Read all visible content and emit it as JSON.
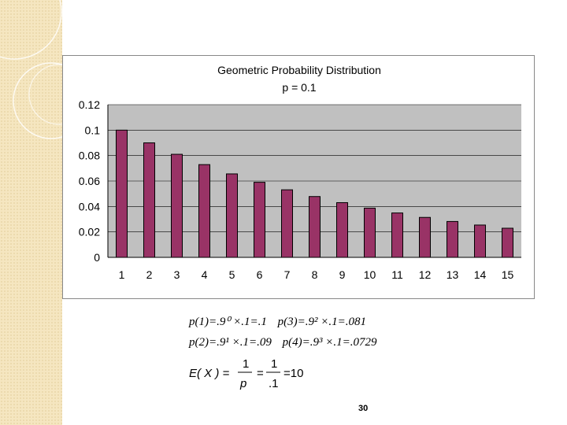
{
  "slide": {
    "page_number": "30",
    "formulas": {
      "p1": "p(1)=.9⁰ ×.1=.1",
      "p3": "p(3)=.9² ×.1=.081",
      "p2": "p(2)=.9¹ ×.1=.09",
      "p4": "p(4)=.9³ ×.1=.0729",
      "expectation": {
        "lhs": "E( X ) =",
        "frac1_num": "1",
        "frac1_den": "p",
        "eq1": "=",
        "frac2_num": "1",
        "frac2_den": ".1",
        "eq2": "=10"
      }
    }
  },
  "chart_data": {
    "type": "bar",
    "title": "Geometric Probability Distribution",
    "subtitle": "p = 0.1",
    "categories": [
      "1",
      "2",
      "3",
      "4",
      "5",
      "6",
      "7",
      "8",
      "9",
      "10",
      "11",
      "12",
      "13",
      "14",
      "15"
    ],
    "values": [
      0.1,
      0.09,
      0.081,
      0.0729,
      0.0656,
      0.059,
      0.0531,
      0.0478,
      0.043,
      0.0387,
      0.0349,
      0.0314,
      0.0282,
      0.0254,
      0.0229
    ],
    "ylim": [
      0,
      0.12
    ],
    "yticks": [
      "0",
      "0.02",
      "0.04",
      "0.06",
      "0.08",
      "0.1",
      "0.12"
    ],
    "grid": true,
    "bar_color": "#993366",
    "plot_bg": "#c0c0c0"
  }
}
